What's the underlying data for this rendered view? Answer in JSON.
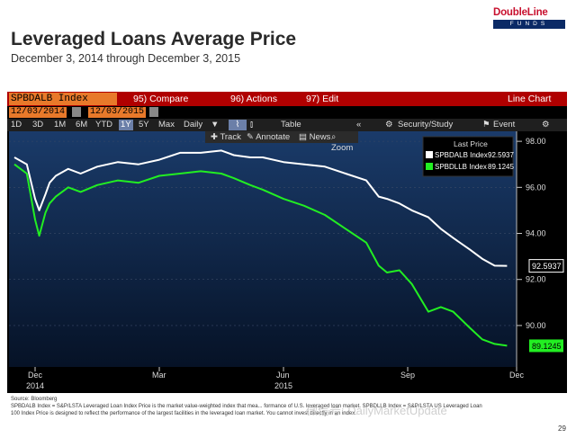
{
  "slide": {
    "title": "Leveraged Loans Average Price",
    "subtitle": "December 3, 2014 through December 3, 2015",
    "logo_text": "DoubleLine",
    "logo_sub": "FUNDS",
    "page_number": "29",
    "source_line1": "Source: Bloomberg",
    "source_line2": "SPBDALB Index = S&P/LSTA Leveraged Loan Index Price is the market value-weighted index that mea... formance of U.S. leveraged loan market. SPBDLLB Index = S&P/LSTA US Leveraged Loan",
    "source_line3": "100 Index Price is designed to reflect the performance of the largest facilities in the leveraged loan market. You cannot invest directly in an index.",
    "watermark": "微信号: DailyMarketUpdate"
  },
  "terminal": {
    "ticker": "SPBDALB Index",
    "menu": [
      "95) Compare",
      "96) Actions",
      "97) Edit"
    ],
    "chart_type": "Line Chart",
    "start_date": "12/03/2014",
    "end_date": "12/03/2015",
    "ranges": [
      "1D",
      "3D",
      "1M",
      "6M",
      "YTD",
      "1Y",
      "5Y",
      "Max"
    ],
    "selected_range": "1Y",
    "freq": "Daily",
    "table_label": "Table",
    "security_label": "Security/Study",
    "event_label": "Event",
    "tools": [
      "Track",
      "Annotate",
      "News",
      "Zoom"
    ],
    "legend_title": "Last Price"
  },
  "colors": {
    "white_series": "#ffffff",
    "green_series": "#22ee22",
    "bg": "#0a1a33"
  },
  "chart_data": {
    "type": "line",
    "x_ticks": [
      "Dec",
      "Mar",
      "Jun",
      "Sep",
      "Dec"
    ],
    "x_ticks_year": [
      "2014",
      "",
      "2015",
      "",
      ""
    ],
    "y_ticks": [
      90,
      92,
      94,
      96,
      98
    ],
    "y_tick_labels": [
      "90.00",
      "92.00",
      "94.00",
      "96.00",
      "98.00"
    ],
    "ylim": [
      88.2,
      98.2
    ],
    "xlim": [
      0,
      12
    ],
    "series": [
      {
        "name": "SPBDALB Index",
        "last": "92.5937",
        "x": [
          0,
          0.3,
          0.5,
          0.6,
          0.75,
          0.85,
          1.0,
          1.3,
          1.6,
          2.0,
          2.5,
          3.0,
          3.5,
          4.0,
          4.5,
          5.0,
          5.3,
          5.7,
          6.0,
          6.5,
          7.0,
          7.5,
          8.0,
          8.5,
          8.8,
          9.0,
          9.3,
          9.6,
          10.0,
          10.3,
          10.6,
          11.0,
          11.3,
          11.6,
          11.9
        ],
        "values": [
          97.3,
          97.0,
          95.5,
          95.0,
          95.7,
          96.2,
          96.5,
          96.8,
          96.6,
          96.9,
          97.1,
          97.0,
          97.2,
          97.5,
          97.5,
          97.6,
          97.4,
          97.3,
          97.3,
          97.1,
          97.0,
          96.9,
          96.6,
          96.3,
          95.6,
          95.5,
          95.3,
          95.0,
          94.7,
          94.2,
          93.8,
          93.3,
          92.9,
          92.6,
          92.59
        ]
      },
      {
        "name": "SPBDLLB Index",
        "last": "89.1245",
        "x": [
          0,
          0.3,
          0.5,
          0.6,
          0.75,
          0.85,
          1.0,
          1.3,
          1.6,
          2.0,
          2.5,
          3.0,
          3.5,
          4.0,
          4.5,
          5.0,
          5.3,
          5.7,
          6.0,
          6.5,
          7.0,
          7.5,
          8.0,
          8.5,
          8.8,
          9.0,
          9.3,
          9.6,
          10.0,
          10.3,
          10.6,
          11.0,
          11.3,
          11.6,
          11.9
        ],
        "values": [
          97.0,
          96.6,
          94.6,
          93.9,
          94.9,
          95.3,
          95.6,
          96.0,
          95.8,
          96.1,
          96.3,
          96.2,
          96.5,
          96.6,
          96.7,
          96.6,
          96.4,
          96.1,
          95.9,
          95.5,
          95.2,
          94.8,
          94.2,
          93.6,
          92.6,
          92.3,
          92.4,
          91.8,
          90.6,
          90.8,
          90.6,
          89.9,
          89.4,
          89.2,
          89.12
        ]
      }
    ]
  }
}
